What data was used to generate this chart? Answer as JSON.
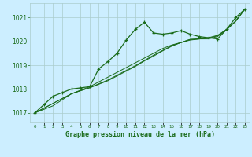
{
  "background_color": "#cceeff",
  "grid_color": "#aacccc",
  "line_color": "#1a6b1a",
  "title": "Graphe pression niveau de la mer (hPa)",
  "ylabel_ticks": [
    1017,
    1018,
    1019,
    1020,
    1021
  ],
  "xlim": [
    -0.5,
    23.5
  ],
  "ylim": [
    1016.6,
    1021.6
  ],
  "x": [
    0,
    1,
    2,
    3,
    4,
    5,
    6,
    7,
    8,
    9,
    10,
    11,
    12,
    13,
    14,
    15,
    16,
    17,
    18,
    19,
    20,
    21,
    22,
    23
  ],
  "series_main": [
    1017.0,
    1017.35,
    1017.7,
    1017.85,
    1018.0,
    1018.05,
    1018.1,
    1018.85,
    1019.15,
    1019.5,
    1020.05,
    1020.5,
    1020.8,
    1020.35,
    1020.3,
    1020.35,
    1020.45,
    1020.3,
    1020.2,
    1020.15,
    1020.1,
    1020.5,
    1021.0,
    1021.35
  ],
  "series_lin1": [
    1017.0,
    1017.2,
    1017.4,
    1017.6,
    1017.8,
    1017.95,
    1018.1,
    1018.3,
    1018.5,
    1018.7,
    1018.9,
    1019.1,
    1019.3,
    1019.5,
    1019.7,
    1019.85,
    1019.95,
    1020.05,
    1020.1,
    1020.15,
    1020.25,
    1020.5,
    1020.85,
    1021.35
  ],
  "series_lin2": [
    1017.0,
    1017.2,
    1017.4,
    1017.6,
    1017.8,
    1017.93,
    1018.06,
    1018.22,
    1018.38,
    1018.58,
    1018.78,
    1018.98,
    1019.2,
    1019.42,
    1019.62,
    1019.82,
    1019.95,
    1020.08,
    1020.1,
    1020.13,
    1020.23,
    1020.5,
    1020.85,
    1021.35
  ],
  "series_lin3": [
    1017.0,
    1017.15,
    1017.3,
    1017.55,
    1017.8,
    1017.93,
    1018.05,
    1018.2,
    1018.35,
    1018.55,
    1018.75,
    1018.95,
    1019.18,
    1019.38,
    1019.6,
    1019.8,
    1019.95,
    1020.08,
    1020.1,
    1020.1,
    1020.2,
    1020.48,
    1020.85,
    1021.35
  ]
}
